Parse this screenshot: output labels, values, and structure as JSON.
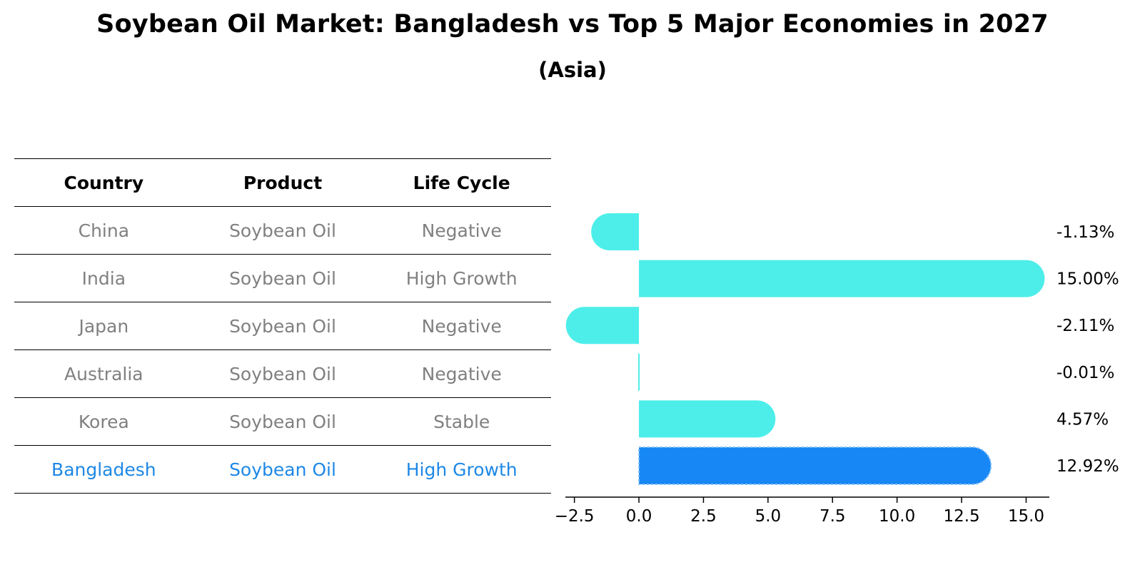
{
  "title": "Soybean Oil Market: Bangladesh vs Top 5 Major Economies in 2027",
  "subtitle": "(Asia)",
  "table": {
    "headers": [
      "Country",
      "Product",
      "Life Cycle"
    ],
    "rows": [
      {
        "country": "China",
        "product": "Soybean Oil",
        "life_cycle": "Negative"
      },
      {
        "country": "India",
        "product": "Soybean Oil",
        "life_cycle": "High Growth"
      },
      {
        "country": "Japan",
        "product": "Soybean Oil",
        "life_cycle": "Negative"
      },
      {
        "country": "Australia",
        "product": "Soybean Oil",
        "life_cycle": "Negative"
      },
      {
        "country": "Korea",
        "product": "Soybean Oil",
        "life_cycle": "Stable"
      },
      {
        "country": "Bangladesh",
        "product": "Soybean Oil",
        "life_cycle": "High Growth"
      }
    ]
  },
  "colors": {
    "bar": "#4deeea",
    "highlight_bar": "#1787f5",
    "highlight_text": "#1e88e5",
    "muted_text": "#808080"
  },
  "chart_data": {
    "type": "bar",
    "orientation": "horizontal",
    "categories": [
      "China",
      "India",
      "Japan",
      "Australia",
      "Korea",
      "Bangladesh"
    ],
    "values": [
      -1.13,
      15.0,
      -2.11,
      -0.01,
      4.57,
      12.92
    ],
    "value_labels": [
      "-1.13%",
      "15.00%",
      "-2.11%",
      "-0.01%",
      "4.57%",
      "12.92%"
    ],
    "highlight": "Bangladesh",
    "xlim": [
      -2.85,
      15.9
    ],
    "xticks": [
      -2.5,
      0.0,
      2.5,
      5.0,
      7.5,
      10.0,
      12.5,
      15.0
    ],
    "xtick_labels": [
      "−2.5",
      "0.0",
      "2.5",
      "5.0",
      "7.5",
      "10.0",
      "12.5",
      "15.0"
    ],
    "xlabel": "",
    "ylabel": "",
    "grid": false
  }
}
